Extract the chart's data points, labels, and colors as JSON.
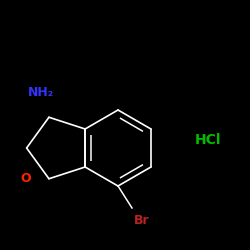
{
  "background_color": "#000000",
  "bond_color": "#ffffff",
  "nh2_color": "#3333ff",
  "o_color": "#ff2200",
  "br_color": "#bb2222",
  "hcl_color": "#00bb00",
  "nh2_label": "NH₂",
  "o_label": "O",
  "br_label": "Br",
  "hcl_label": "HCl",
  "bond_width": 1.2,
  "figsize": [
    2.5,
    2.5
  ],
  "dpi": 100
}
